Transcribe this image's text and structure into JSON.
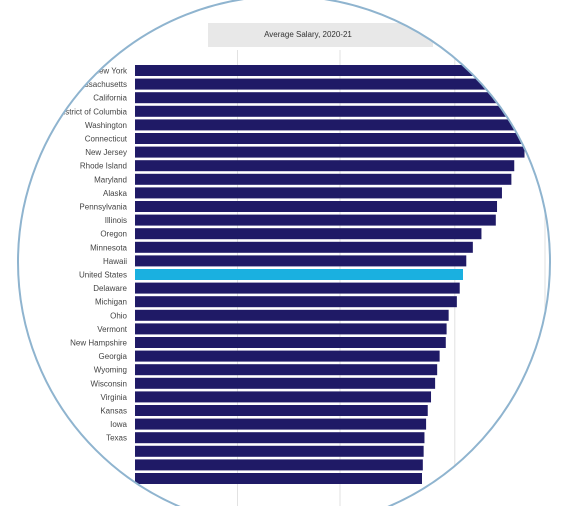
{
  "chart_data": {
    "type": "bar",
    "orientation": "horizontal",
    "title": "Average Salary, 2020-21",
    "xlabel": "",
    "ylabel": "",
    "xlim": [
      0,
      100
    ],
    "grid": true,
    "highlight_category": "United States",
    "colors": {
      "bar": "#1f1a66",
      "highlight": "#1ab0e0",
      "title_background": "#e8e8e8",
      "grid": "#e2e2e2",
      "circle_border": "#8fb4cf"
    },
    "categories": [
      "New York",
      "Massachusetts",
      "California",
      "District of Columbia",
      "Washington",
      "Connecticut",
      "New Jersey",
      "Rhode Island",
      "Maryland",
      "Alaska",
      "Pennsylvania",
      "Illinois",
      "Oregon",
      "Minnesota",
      "Hawaii",
      "United States",
      "Delaware",
      "Michigan",
      "Ohio",
      "Vermont",
      "New Hampshire",
      "Georgia",
      "Wyoming",
      "Wisconsin",
      "Virginia",
      "Kansas",
      "Iowa",
      "Texas",
      "",
      "",
      ""
    ],
    "values": [
      99,
      98.5,
      97.5,
      97,
      96,
      95.8,
      95,
      92.5,
      91.8,
      89.5,
      88.3,
      88,
      84.5,
      82.4,
      80.8,
      80,
      79.2,
      78.5,
      76.5,
      76,
      75.8,
      74.3,
      73.7,
      73.2,
      72.2,
      71.4,
      71,
      70.6,
      70.4,
      70.2,
      70
    ]
  }
}
